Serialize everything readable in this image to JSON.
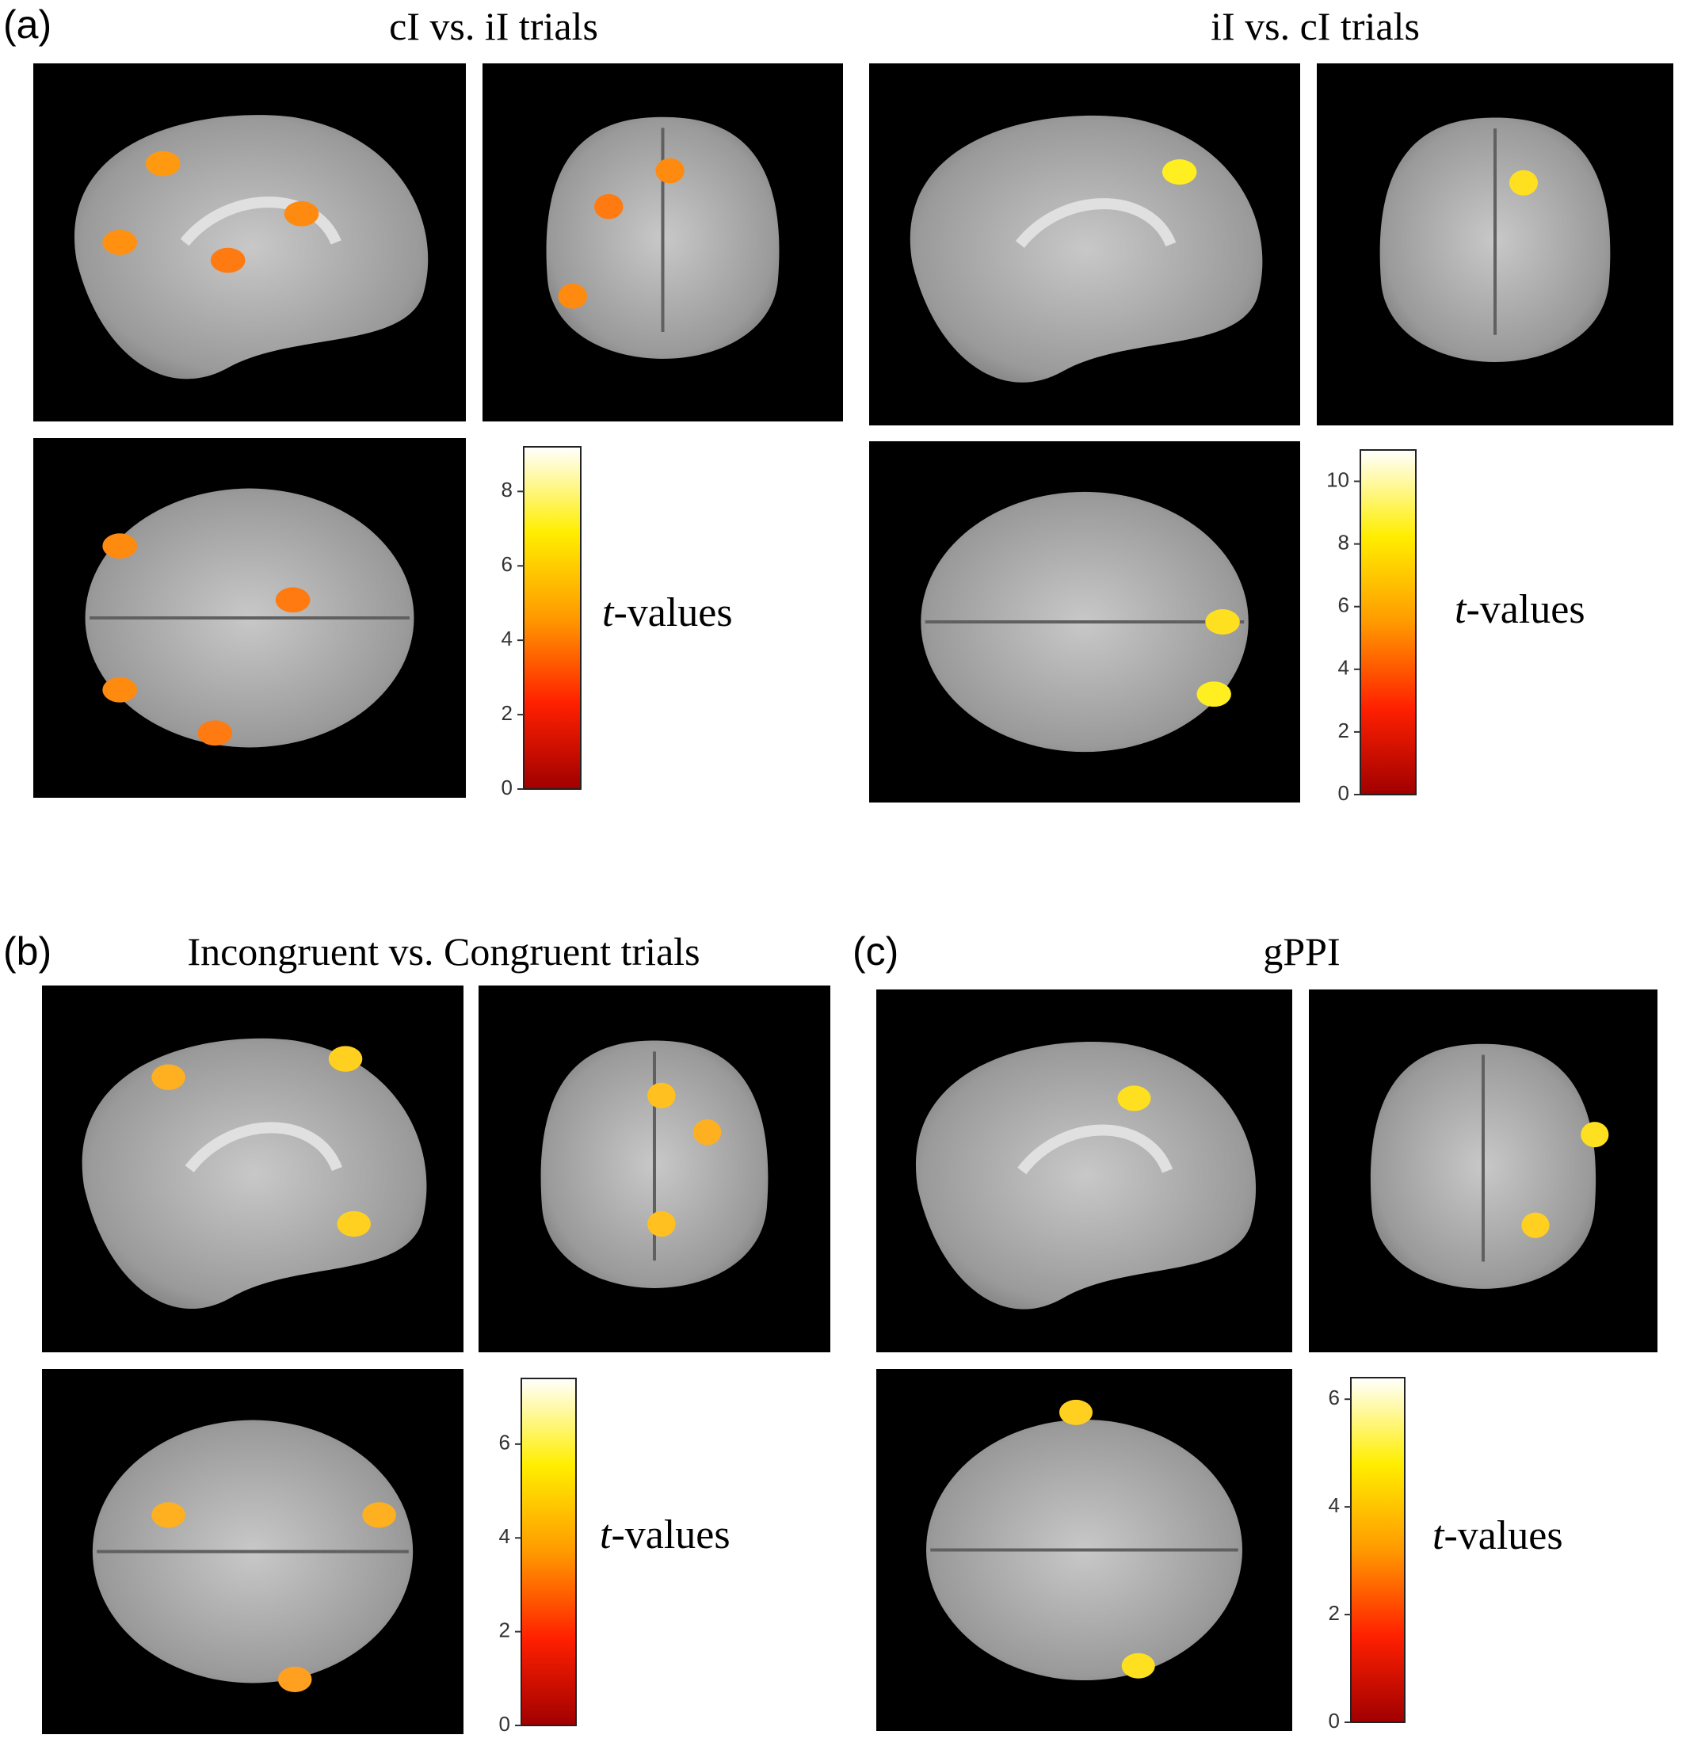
{
  "panels": [
    {
      "label": "(a)",
      "title": "cI vs. iI trials",
      "colorbar": {
        "lim": [
          0,
          9.2
        ],
        "ticks": [
          0,
          2,
          4,
          6,
          8
        ],
        "label_italic": "t",
        "label_rest": "-values"
      }
    },
    {
      "title": "iI vs. cI trials",
      "colorbar": {
        "lim": [
          0,
          11
        ],
        "ticks": [
          0,
          2,
          4,
          6,
          8,
          10
        ],
        "label_italic": "t",
        "label_rest": "-values"
      }
    },
    {
      "label": "(b)",
      "title": "Incongruent vs. Congruent trials",
      "colorbar": {
        "lim": [
          0,
          7.4
        ],
        "ticks": [
          0,
          2,
          4,
          6
        ],
        "label_italic": "t",
        "label_rest": "-values"
      }
    },
    {
      "label": "(c)",
      "title": "gPPI",
      "colorbar": {
        "lim": [
          0,
          6.4
        ],
        "ticks": [
          0,
          2,
          4,
          6
        ],
        "label_italic": "t",
        "label_rest": "-values"
      }
    }
  ]
}
